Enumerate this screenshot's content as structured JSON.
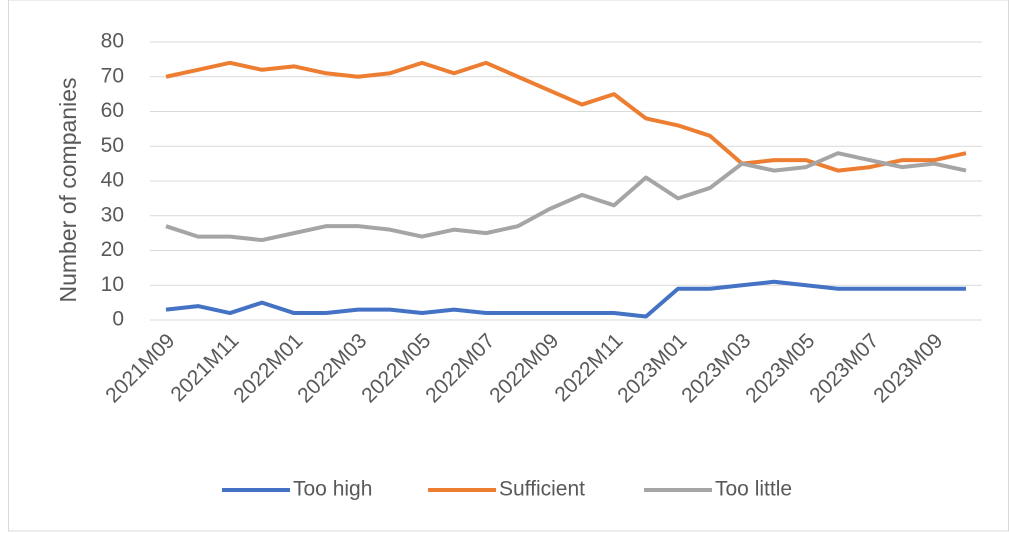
{
  "chart_data": {
    "type": "line",
    "y_label": "Number of companies",
    "categories": [
      "2021M09",
      null,
      "2021M11",
      null,
      "2022M01",
      null,
      "2022M03",
      null,
      "2022M05",
      null,
      "2022M07",
      null,
      "2022M09",
      null,
      "2022M11",
      null,
      "2023M01",
      null,
      "2023M03",
      null,
      "2023M05",
      null,
      "2023M07",
      null,
      "2023M09",
      null
    ],
    "series": [
      {
        "name": "Too high",
        "color": "#4472c4",
        "values": [
          3,
          4,
          2,
          5,
          2,
          2,
          3,
          3,
          2,
          3,
          2,
          2,
          2,
          2,
          2,
          1,
          9,
          9,
          10,
          11,
          10,
          9,
          9,
          9,
          9,
          9
        ]
      },
      {
        "name": "Sufficient",
        "color": "#ed7d31",
        "values": [
          70,
          72,
          74,
          72,
          73,
          71,
          70,
          71,
          74,
          71,
          74,
          70,
          66,
          62,
          65,
          58,
          56,
          53,
          45,
          46,
          46,
          43,
          44,
          46,
          46,
          48
        ]
      },
      {
        "name": "Too little",
        "color": "#a5a5a5",
        "values": [
          27,
          24,
          24,
          23,
          25,
          27,
          27,
          26,
          24,
          26,
          25,
          27,
          32,
          36,
          33,
          41,
          35,
          38,
          45,
          43,
          44,
          48,
          46,
          44,
          45,
          43
        ]
      }
    ],
    "ylim": [
      0,
      80
    ],
    "yticks": [
      0,
      10,
      20,
      30,
      40,
      50,
      60,
      70,
      80
    ],
    "grid": true,
    "legend": "bottom"
  }
}
